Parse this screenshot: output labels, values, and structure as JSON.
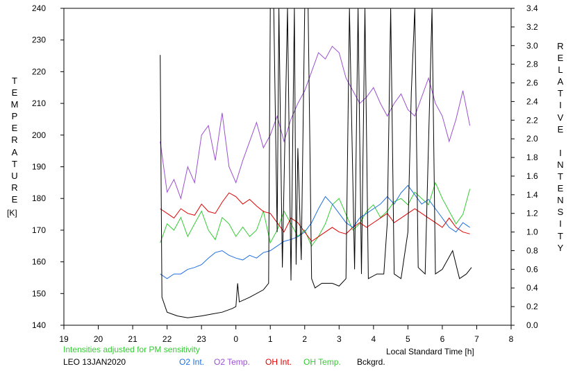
{
  "chart_data": {
    "type": "line",
    "xlabel": "Local Standard Time [h]",
    "y_left_label": "TEMPERATURE",
    "y_left_unit": "[K]",
    "y_right_label": "RELATIVE INTENSITY",
    "ylim_left": [
      140,
      240
    ],
    "ylim_right": [
      0.0,
      3.4
    ],
    "x_range_hours": [
      19,
      32
    ],
    "x_tick_labels": [
      "19",
      "20",
      "21",
      "22",
      "23",
      "0",
      "1",
      "2",
      "3",
      "4",
      "5",
      "6",
      "7",
      "8"
    ],
    "y_left_ticks": [
      "140",
      "150",
      "160",
      "170",
      "180",
      "190",
      "200",
      "210",
      "220",
      "230",
      "240"
    ],
    "y_right_ticks": [
      "0.0",
      "0.2",
      "0.4",
      "0.6",
      "0.8",
      "1.0",
      "1.2",
      "1.4",
      "1.6",
      "1.8",
      "2.0",
      "2.2",
      "2.4",
      "2.6",
      "2.8",
      "3.0",
      "3.2",
      "3.4"
    ],
    "note": "Intensities adjusted for PM sensitivity",
    "station_date": "LEO 13JAN2020",
    "legend": [
      {
        "label": "O2 Int.",
        "color": "#1f6fe0"
      },
      {
        "label": "O2 Temp.",
        "color": "#9b4fd0"
      },
      {
        "label": "OH Int.",
        "color": "#e00000"
      },
      {
        "label": "OH Temp.",
        "color": "#33cc33"
      },
      {
        "label": "Bckgrd.",
        "color": "#000000"
      }
    ],
    "series": [
      {
        "name": "O2 Temp.",
        "color": "#9b4fd0",
        "axis": "left",
        "points": [
          [
            21.8,
            198
          ],
          [
            22.0,
            182
          ],
          [
            22.2,
            186
          ],
          [
            22.4,
            180
          ],
          [
            22.6,
            190
          ],
          [
            22.8,
            185
          ],
          [
            23.0,
            200
          ],
          [
            23.2,
            203
          ],
          [
            23.4,
            192
          ],
          [
            23.6,
            207
          ],
          [
            23.8,
            190
          ],
          [
            24.0,
            185
          ],
          [
            24.2,
            192
          ],
          [
            24.4,
            198
          ],
          [
            24.6,
            204
          ],
          [
            24.8,
            196
          ],
          [
            25.0,
            200
          ],
          [
            25.2,
            206
          ],
          [
            25.4,
            198
          ],
          [
            25.6,
            205
          ],
          [
            25.8,
            210
          ],
          [
            26.0,
            214
          ],
          [
            26.2,
            220
          ],
          [
            26.4,
            226
          ],
          [
            26.6,
            224
          ],
          [
            26.8,
            228
          ],
          [
            27.0,
            226
          ],
          [
            27.2,
            218
          ],
          [
            27.4,
            214
          ],
          [
            27.6,
            210
          ],
          [
            27.8,
            212
          ],
          [
            28.0,
            215
          ],
          [
            28.2,
            210
          ],
          [
            28.4,
            206
          ],
          [
            28.6,
            210
          ],
          [
            28.8,
            213
          ],
          [
            29.0,
            208
          ],
          [
            29.2,
            206
          ],
          [
            29.4,
            212
          ],
          [
            29.6,
            218
          ],
          [
            29.8,
            210
          ],
          [
            30.0,
            206
          ],
          [
            30.2,
            198
          ],
          [
            30.4,
            205
          ],
          [
            30.6,
            214
          ],
          [
            30.8,
            203
          ]
        ]
      },
      {
        "name": "OH Temp.",
        "color": "#33cc33",
        "axis": "left",
        "points": [
          [
            21.8,
            166
          ],
          [
            22.0,
            172
          ],
          [
            22.2,
            170
          ],
          [
            22.4,
            174
          ],
          [
            22.6,
            168
          ],
          [
            22.8,
            172
          ],
          [
            23.0,
            176
          ],
          [
            23.2,
            170
          ],
          [
            23.4,
            167
          ],
          [
            23.6,
            174
          ],
          [
            23.8,
            172
          ],
          [
            24.0,
            168
          ],
          [
            24.2,
            171
          ],
          [
            24.4,
            168
          ],
          [
            24.6,
            170
          ],
          [
            24.8,
            176
          ],
          [
            25.0,
            166
          ],
          [
            25.2,
            170
          ],
          [
            25.4,
            176
          ],
          [
            25.6,
            172
          ],
          [
            25.8,
            168
          ],
          [
            26.0,
            170
          ],
          [
            26.2,
            165
          ],
          [
            26.4,
            168
          ],
          [
            26.6,
            172
          ],
          [
            26.8,
            178
          ],
          [
            27.0,
            180
          ],
          [
            27.2,
            175
          ],
          [
            27.4,
            170
          ],
          [
            27.6,
            172
          ],
          [
            27.8,
            176
          ],
          [
            28.0,
            178
          ],
          [
            28.2,
            174
          ],
          [
            28.4,
            176
          ],
          [
            28.6,
            179
          ],
          [
            28.8,
            180
          ],
          [
            29.0,
            178
          ],
          [
            29.2,
            182
          ],
          [
            29.4,
            180
          ],
          [
            29.6,
            178
          ],
          [
            29.8,
            185
          ],
          [
            30.0,
            180
          ],
          [
            30.2,
            176
          ],
          [
            30.4,
            172
          ],
          [
            30.6,
            175
          ],
          [
            30.8,
            183
          ]
        ]
      },
      {
        "name": "OH Int.",
        "color": "#e00000",
        "axis": "right",
        "points": [
          [
            21.8,
            1.25
          ],
          [
            22.0,
            1.2
          ],
          [
            22.2,
            1.15
          ],
          [
            22.4,
            1.25
          ],
          [
            22.6,
            1.2
          ],
          [
            22.8,
            1.18
          ],
          [
            23.0,
            1.3
          ],
          [
            23.2,
            1.22
          ],
          [
            23.4,
            1.2
          ],
          [
            23.6,
            1.32
          ],
          [
            23.8,
            1.42
          ],
          [
            24.0,
            1.38
          ],
          [
            24.2,
            1.3
          ],
          [
            24.4,
            1.35
          ],
          [
            24.6,
            1.28
          ],
          [
            24.8,
            1.22
          ],
          [
            25.0,
            1.2
          ],
          [
            25.2,
            1.1
          ],
          [
            25.4,
            1.0
          ],
          [
            25.6,
            1.15
          ],
          [
            25.8,
            1.1
          ],
          [
            26.0,
            1.0
          ],
          [
            26.2,
            0.9
          ],
          [
            26.4,
            0.95
          ],
          [
            26.6,
            1.0
          ],
          [
            26.8,
            1.05
          ],
          [
            27.0,
            1.0
          ],
          [
            27.2,
            0.98
          ],
          [
            27.4,
            1.05
          ],
          [
            27.6,
            1.1
          ],
          [
            27.8,
            1.05
          ],
          [
            28.0,
            1.1
          ],
          [
            28.2,
            1.15
          ],
          [
            28.4,
            1.2
          ],
          [
            28.6,
            1.1
          ],
          [
            28.8,
            1.15
          ],
          [
            29.0,
            1.2
          ],
          [
            29.2,
            1.25
          ],
          [
            29.4,
            1.2
          ],
          [
            29.6,
            1.15
          ],
          [
            29.8,
            1.1
          ],
          [
            30.0,
            1.05
          ],
          [
            30.2,
            1.15
          ],
          [
            30.4,
            1.05
          ],
          [
            30.6,
            1.0
          ],
          [
            30.8,
            0.98
          ]
        ]
      },
      {
        "name": "O2 Int.",
        "color": "#1f6fe0",
        "axis": "right",
        "points": [
          [
            21.8,
            0.55
          ],
          [
            22.0,
            0.5
          ],
          [
            22.2,
            0.55
          ],
          [
            22.4,
            0.55
          ],
          [
            22.6,
            0.6
          ],
          [
            22.8,
            0.62
          ],
          [
            23.0,
            0.65
          ],
          [
            23.2,
            0.72
          ],
          [
            23.4,
            0.78
          ],
          [
            23.6,
            0.8
          ],
          [
            23.8,
            0.75
          ],
          [
            24.0,
            0.72
          ],
          [
            24.2,
            0.7
          ],
          [
            24.4,
            0.75
          ],
          [
            24.6,
            0.72
          ],
          [
            24.8,
            0.78
          ],
          [
            25.0,
            0.8
          ],
          [
            25.2,
            0.85
          ],
          [
            25.4,
            0.9
          ],
          [
            25.6,
            0.92
          ],
          [
            25.8,
            0.95
          ],
          [
            26.0,
            1.0
          ],
          [
            26.2,
            1.1
          ],
          [
            26.4,
            1.25
          ],
          [
            26.6,
            1.38
          ],
          [
            26.8,
            1.3
          ],
          [
            27.0,
            1.2
          ],
          [
            27.2,
            1.1
          ],
          [
            27.4,
            1.05
          ],
          [
            27.6,
            1.15
          ],
          [
            27.8,
            1.2
          ],
          [
            28.0,
            1.25
          ],
          [
            28.2,
            1.3
          ],
          [
            28.4,
            1.38
          ],
          [
            28.6,
            1.3
          ],
          [
            28.8,
            1.42
          ],
          [
            29.0,
            1.5
          ],
          [
            29.2,
            1.4
          ],
          [
            29.4,
            1.3
          ],
          [
            29.6,
            1.35
          ],
          [
            29.8,
            1.25
          ],
          [
            30.0,
            1.15
          ],
          [
            30.2,
            1.05
          ],
          [
            30.4,
            1.0
          ],
          [
            30.6,
            1.1
          ],
          [
            30.8,
            1.05
          ]
        ]
      },
      {
        "name": "Bckgrd.",
        "color": "#000000",
        "axis": "right",
        "points": [
          [
            21.8,
            2.9
          ],
          [
            21.85,
            0.3
          ],
          [
            22.0,
            0.14
          ],
          [
            22.3,
            0.1
          ],
          [
            22.6,
            0.08
          ],
          [
            23.0,
            0.1
          ],
          [
            23.3,
            0.12
          ],
          [
            23.6,
            0.14
          ],
          [
            23.9,
            0.18
          ],
          [
            24.0,
            0.2
          ],
          [
            24.05,
            0.45
          ],
          [
            24.1,
            0.25
          ],
          [
            24.4,
            0.3
          ],
          [
            24.8,
            0.38
          ],
          [
            24.95,
            0.45
          ],
          [
            25.0,
            3.4
          ],
          [
            25.1,
            3.4
          ],
          [
            25.2,
            1.0
          ],
          [
            25.25,
            3.4
          ],
          [
            25.35,
            0.62
          ],
          [
            25.5,
            3.4
          ],
          [
            25.6,
            0.48
          ],
          [
            25.7,
            3.4
          ],
          [
            25.75,
            0.65
          ],
          [
            25.8,
            1.9
          ],
          [
            25.9,
            0.7
          ],
          [
            26.0,
            3.4
          ],
          [
            26.1,
            3.4
          ],
          [
            26.2,
            0.5
          ],
          [
            26.3,
            0.4
          ],
          [
            26.5,
            0.45
          ],
          [
            26.8,
            0.45
          ],
          [
            27.0,
            0.42
          ],
          [
            27.2,
            0.5
          ],
          [
            27.3,
            3.4
          ],
          [
            27.45,
            0.6
          ],
          [
            27.55,
            3.4
          ],
          [
            27.65,
            0.55
          ],
          [
            27.75,
            3.4
          ],
          [
            27.85,
            0.5
          ],
          [
            28.1,
            0.55
          ],
          [
            28.3,
            0.55
          ],
          [
            28.4,
            1.1
          ],
          [
            28.5,
            3.4
          ],
          [
            28.6,
            0.55
          ],
          [
            28.8,
            0.5
          ],
          [
            29.0,
            1.0
          ],
          [
            29.1,
            2.5
          ],
          [
            29.2,
            3.4
          ],
          [
            29.3,
            0.62
          ],
          [
            29.5,
            0.55
          ],
          [
            29.7,
            3.4
          ],
          [
            29.8,
            0.55
          ],
          [
            30.0,
            0.6
          ],
          [
            30.3,
            0.8
          ],
          [
            30.5,
            0.5
          ],
          [
            30.7,
            0.55
          ],
          [
            30.85,
            0.62
          ]
        ]
      }
    ]
  }
}
